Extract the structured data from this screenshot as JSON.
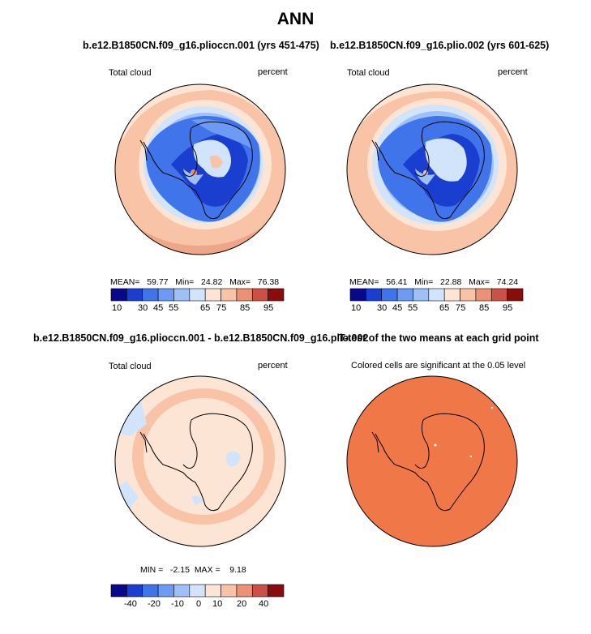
{
  "page_title": "ANN",
  "panels": [
    {
      "title": "b.e12.B1850CN.f09_g16.plioccn.001 (yrs 451-475)",
      "left_label": "Total cloud",
      "right_label": "percent",
      "stats": "MEAN=   59.77   Min=   24.82   Max=   76.38",
      "colorbar_ticks": [
        "10",
        "30",
        "45",
        "55",
        "65",
        "75",
        "85",
        "95"
      ]
    },
    {
      "title": "b.e12.B1850CN.f09_g16.plio.002 (yrs 601-625)",
      "left_label": "Total cloud",
      "right_label": "percent",
      "stats": "MEAN=   56.41   Min=   22.88   Max=   74.24",
      "colorbar_ticks": [
        "10",
        "30",
        "45",
        "55",
        "65",
        "75",
        "85",
        "95"
      ]
    },
    {
      "title": "b.e12.B1850CN.f09_g16.plioccn.001 - b.e12.B1850CN.f09_g16.plio.002",
      "left_label": "Total cloud",
      "right_label": "percent",
      "stats": "MIN =   -2.15  MAX =    9.18",
      "colorbar_ticks": [
        "-40",
        "-20",
        "-10",
        "0",
        "10",
        "20",
        "40"
      ]
    },
    {
      "title": "T-test of the two means at each grid point",
      "subtitle": "Colored cells are significant at the 0.05 level"
    }
  ],
  "colors": {
    "abs_scale": [
      "#08088c",
      "#1a3fd0",
      "#3f74ea",
      "#6d9af2",
      "#9fc0f6",
      "#d2e4fb",
      "#fde5d6",
      "#f8c3a6",
      "#eb9176",
      "#cc5046",
      "#8b0c0c"
    ],
    "diff_scale": [
      "#08088c",
      "#1a3fd0",
      "#3f74ea",
      "#6d9af2",
      "#9fc0f6",
      "#d2e4fb",
      "#fde5d6",
      "#f8c3a6",
      "#eb9176",
      "#cc5046",
      "#8b0c0c"
    ],
    "ttest_fill": "#f07848"
  }
}
